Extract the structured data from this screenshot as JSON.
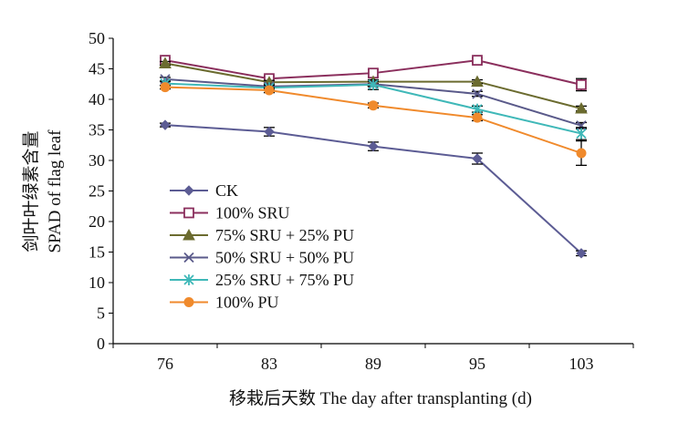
{
  "chart_data": {
    "type": "line",
    "title": "",
    "xlabel": "移栽后天数 The day after transplanting (d)",
    "ylabel_cn": "剑叶叶绿素含量",
    "ylabel_en": "SPAD of flag leaf",
    "categories": [
      "76",
      "83",
      "89",
      "95",
      "103"
    ],
    "ylim": [
      0,
      50
    ],
    "yticks": [
      0,
      5,
      10,
      15,
      20,
      25,
      30,
      35,
      40,
      45,
      50
    ],
    "grid": false,
    "legend_position": "lower-left",
    "series": [
      {
        "name": "CK",
        "values": [
          35.8,
          34.7,
          32.3,
          30.3,
          14.8
        ],
        "errors": [
          0.3,
          0.7,
          0.7,
          0.9,
          0.4
        ],
        "color": "#5c5c94",
        "marker": "diamond"
      },
      {
        "name": "100% SRU",
        "values": [
          46.4,
          43.4,
          44.3,
          46.4,
          42.4
        ],
        "errors": [
          0.4,
          0.4,
          0.6,
          0.4,
          1.0
        ],
        "color": "#8b2f5d",
        "marker": "square"
      },
      {
        "name": "75% SRU + 25% PU",
        "values": [
          45.9,
          42.8,
          42.9,
          42.9,
          38.5
        ],
        "errors": [
          0.3,
          0.3,
          0.3,
          0.3,
          0.4
        ],
        "color": "#6b6b2f",
        "marker": "triangle"
      },
      {
        "name": "50% SRU + 50% PU",
        "values": [
          43.3,
          42.1,
          42.5,
          40.9,
          35.7
        ],
        "errors": [
          0.3,
          0.4,
          0.4,
          0.4,
          0.5
        ],
        "color": "#5a5a8a",
        "marker": "x"
      },
      {
        "name": "25% SRU + 75% PU",
        "values": [
          42.6,
          41.9,
          42.4,
          38.4,
          34.4
        ],
        "errors": [
          0.3,
          0.4,
          0.8,
          0.5,
          1.0
        ],
        "color": "#3fb8b8",
        "marker": "star"
      },
      {
        "name": "100% PU",
        "values": [
          42.0,
          41.5,
          39.0,
          37.0,
          31.2
        ],
        "errors": [
          0.3,
          0.4,
          0.4,
          0.5,
          2.0
        ],
        "color": "#f08a2c",
        "marker": "circle"
      }
    ]
  }
}
